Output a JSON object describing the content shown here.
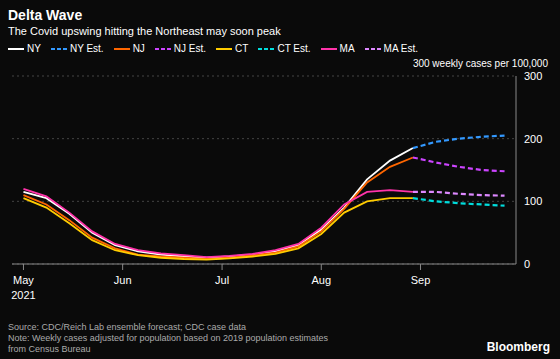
{
  "chart_data": {
    "type": "line",
    "title": "Delta Wave",
    "subtitle": "The Covid upswing hitting the Northeast may soon peak",
    "ylabel": "300 weekly cases per 100,000",
    "source": "Source: CDC/Reich Lab ensemble forecast; CDC case data",
    "note": "Note: Weekly cases adjusted for population based on 2019 population estimates\nfrom Census Bureau",
    "credit": "Bloomberg",
    "annotations": [
      {
        "text": "2021",
        "x": 0
      }
    ],
    "x": [
      0,
      1,
      2,
      3,
      4,
      5,
      6,
      7,
      8,
      9,
      10,
      11,
      12,
      13,
      14,
      15,
      16,
      17,
      18,
      19,
      20,
      21
    ],
    "xlim": [
      -0.5,
      21.5
    ],
    "xticks": [
      {
        "value": 0,
        "label": "May"
      },
      {
        "value": 4.33,
        "label": "Jun"
      },
      {
        "value": 8.67,
        "label": "Jul"
      },
      {
        "value": 13,
        "label": "Aug"
      },
      {
        "value": 17.33,
        "label": "Sep"
      }
    ],
    "ylim": [
      0,
      300
    ],
    "yticks": [
      0,
      100,
      200,
      300
    ],
    "grid": true,
    "legend": "top",
    "series": [
      {
        "name": "NY",
        "color": "#ffffff",
        "line_style": "solid",
        "values": [
          115,
          105,
          80,
          50,
          30,
          20,
          15,
          12,
          10,
          12,
          15,
          20,
          30,
          55,
          90,
          135,
          165,
          185,
          null,
          null,
          null,
          null
        ]
      },
      {
        "name": "NY Est.",
        "color": "#3399ff",
        "line_style": "dashed",
        "values": [
          null,
          null,
          null,
          null,
          null,
          null,
          null,
          null,
          null,
          null,
          null,
          null,
          null,
          null,
          null,
          null,
          null,
          185,
          195,
          200,
          203,
          205
        ]
      },
      {
        "name": "NJ",
        "color": "#ff6600",
        "line_style": "solid",
        "values": [
          110,
          95,
          70,
          42,
          25,
          15,
          12,
          10,
          8,
          10,
          14,
          18,
          28,
          52,
          88,
          130,
          155,
          170,
          null,
          null,
          null,
          null
        ]
      },
      {
        "name": "NJ Est.",
        "color": "#cc44ff",
        "line_style": "dashed",
        "values": [
          null,
          null,
          null,
          null,
          null,
          null,
          null,
          null,
          null,
          null,
          null,
          null,
          null,
          null,
          null,
          null,
          null,
          170,
          162,
          155,
          150,
          148
        ]
      },
      {
        "name": "CT",
        "color": "#ffcc00",
        "line_style": "solid",
        "values": [
          105,
          90,
          65,
          38,
          22,
          14,
          10,
          8,
          7,
          9,
          12,
          16,
          25,
          48,
          82,
          100,
          105,
          105,
          null,
          null,
          null,
          null
        ]
      },
      {
        "name": "CT Est.",
        "color": "#00dddd",
        "line_style": "dashed",
        "values": [
          null,
          null,
          null,
          null,
          null,
          null,
          null,
          null,
          null,
          null,
          null,
          null,
          null,
          null,
          null,
          null,
          null,
          105,
          100,
          97,
          95,
          93
        ]
      },
      {
        "name": "MA",
        "color": "#ff33aa",
        "line_style": "solid",
        "values": [
          120,
          108,
          82,
          52,
          32,
          22,
          17,
          14,
          11,
          13,
          16,
          22,
          32,
          58,
          95,
          115,
          118,
          115,
          null,
          null,
          null,
          null
        ]
      },
      {
        "name": "MA Est.",
        "color": "#dd88ff",
        "line_style": "dashed",
        "values": [
          null,
          null,
          null,
          null,
          null,
          null,
          null,
          null,
          null,
          null,
          null,
          null,
          null,
          null,
          null,
          null,
          null,
          115,
          115,
          112,
          110,
          109
        ]
      }
    ]
  }
}
